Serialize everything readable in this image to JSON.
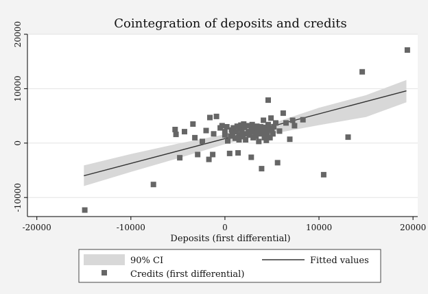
{
  "chart_data": {
    "type": "scatter",
    "title": "Cointegration of deposits and credits",
    "xlabel": "Deposits (first differential)",
    "ylabel": "",
    "xlim": [
      -21000,
      20500
    ],
    "ylim": [
      -13500,
      20000
    ],
    "xticks": [
      -20000,
      -10000,
      0,
      10000,
      20000
    ],
    "yticks": [
      -10000,
      0,
      10000,
      20000
    ],
    "grid": "horizontal",
    "legend_position": "bottom",
    "legend": {
      "ci_label": "90% CI",
      "fit_label": "Fitted values",
      "points_label": "Credits (first differential)"
    },
    "fit_line": {
      "x": [
        -15000,
        19300
      ],
      "y": [
        -6000,
        9600
      ]
    },
    "confidence_band": {
      "x": [
        -15000,
        -10000,
        -5000,
        0,
        2000,
        5000,
        10000,
        15000,
        19300
      ],
      "lower": [
        -7900,
        -5300,
        -2800,
        -200,
        700,
        1700,
        3300,
        4800,
        7500
      ],
      "upper": [
        -4100,
        -2000,
        -100,
        1600,
        2400,
        3600,
        6500,
        8800,
        11600
      ]
    },
    "series": [
      {
        "name": "Credits (first differential)",
        "color": "#666666",
        "points": [
          [
            -14900,
            -12300
          ],
          [
            -7600,
            -7600
          ],
          [
            -5300,
            2500
          ],
          [
            -5200,
            1600
          ],
          [
            -4800,
            -2700
          ],
          [
            -4300,
            2100
          ],
          [
            -3400,
            3500
          ],
          [
            -3200,
            1000
          ],
          [
            -2900,
            -2100
          ],
          [
            -2400,
            300
          ],
          [
            -2000,
            2300
          ],
          [
            -1700,
            -3000
          ],
          [
            -1600,
            4700
          ],
          [
            -1300,
            -2100
          ],
          [
            -1200,
            1700
          ],
          [
            -900,
            4900
          ],
          [
            -500,
            2800
          ],
          [
            -300,
            3200
          ],
          [
            0,
            1500
          ],
          [
            0,
            2100
          ],
          [
            200,
            3000
          ],
          [
            300,
            400
          ],
          [
            500,
            -1900
          ],
          [
            600,
            1300
          ],
          [
            700,
            2400
          ],
          [
            800,
            1800
          ],
          [
            900,
            2800
          ],
          [
            1100,
            900
          ],
          [
            1200,
            2100
          ],
          [
            1300,
            3100
          ],
          [
            1400,
            -1800
          ],
          [
            1500,
            1500
          ],
          [
            1500,
            600
          ],
          [
            1600,
            2600
          ],
          [
            1700,
            3300
          ],
          [
            1800,
            2000
          ],
          [
            1900,
            1200
          ],
          [
            2000,
            3500
          ],
          [
            2100,
            2900
          ],
          [
            2200,
            600
          ],
          [
            2300,
            1700
          ],
          [
            2400,
            3200
          ],
          [
            2500,
            2100
          ],
          [
            2600,
            1500
          ],
          [
            2800,
            -2600
          ],
          [
            2800,
            2500
          ],
          [
            2900,
            3400
          ],
          [
            3000,
            1000
          ],
          [
            3100,
            2000
          ],
          [
            3200,
            2800
          ],
          [
            3300,
            1300
          ],
          [
            3400,
            3100
          ],
          [
            3500,
            2300
          ],
          [
            3600,
            300
          ],
          [
            3700,
            1700
          ],
          [
            3800,
            3000
          ],
          [
            3900,
            -4700
          ],
          [
            4000,
            2600
          ],
          [
            4000,
            1800
          ],
          [
            4100,
            4200
          ],
          [
            4200,
            1000
          ],
          [
            4300,
            2900
          ],
          [
            4400,
            500
          ],
          [
            4500,
            2200
          ],
          [
            4500,
            1500
          ],
          [
            4600,
            7900
          ],
          [
            4600,
            3400
          ],
          [
            4700,
            2700
          ],
          [
            4800,
            1000
          ],
          [
            4900,
            4600
          ],
          [
            5000,
            2400
          ],
          [
            5100,
            1700
          ],
          [
            5200,
            3000
          ],
          [
            5400,
            3700
          ],
          [
            5600,
            -3600
          ],
          [
            5800,
            2200
          ],
          [
            6200,
            5500
          ],
          [
            6500,
            3700
          ],
          [
            6900,
            700
          ],
          [
            7200,
            4200
          ],
          [
            7400,
            3200
          ],
          [
            8300,
            4300
          ],
          [
            10500,
            -5800
          ],
          [
            13100,
            1100
          ],
          [
            14600,
            13100
          ],
          [
            19400,
            17100
          ]
        ]
      }
    ],
    "colors": {
      "background": "#f3f3f3",
      "plot_background": "#ffffff",
      "grid": "#e3e3e3",
      "ci_band": "#d8d8d8",
      "fit_line": "#333333",
      "points": "#666666"
    }
  }
}
